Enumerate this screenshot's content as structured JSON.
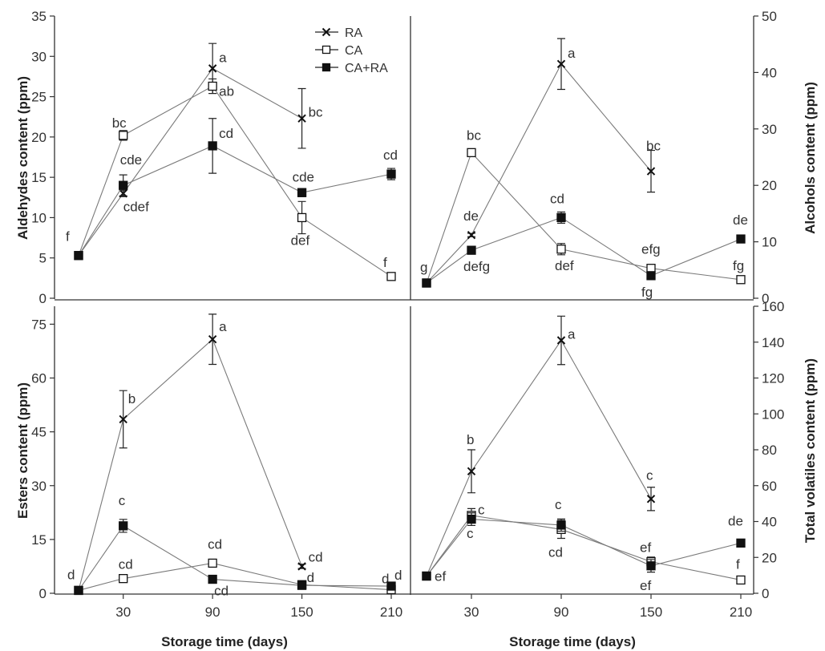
{
  "chart_data": [
    {
      "id": "aldehydes",
      "type": "line",
      "ylabel": "Aldehydes content (ppm)",
      "yaxis_side": "left",
      "ylim": [
        0,
        35
      ],
      "yticks": [
        0,
        5,
        10,
        15,
        20,
        25,
        30,
        35
      ],
      "xlim": [
        0,
        210
      ],
      "xticks": [
        30,
        90,
        150,
        210
      ],
      "legend": "top-center",
      "series": [
        {
          "name": "RA",
          "marker": "x",
          "points": [
            {
              "x": 0,
              "y": 5.3,
              "err": 0,
              "label": ""
            },
            {
              "x": 30,
              "y": 13.0,
              "err": 0.4,
              "label": "cdef"
            },
            {
              "x": 90,
              "y": 28.5,
              "err": 3.1,
              "label": "a"
            },
            {
              "x": 150,
              "y": 22.3,
              "err": 3.7,
              "label": "bc"
            }
          ]
        },
        {
          "name": "CA",
          "marker": "open-square",
          "points": [
            {
              "x": 0,
              "y": 5.3,
              "err": 0,
              "label": ""
            },
            {
              "x": 30,
              "y": 20.2,
              "err": 0.6,
              "label": "bc"
            },
            {
              "x": 90,
              "y": 26.3,
              "err": 0.9,
              "label": "ab"
            },
            {
              "x": 150,
              "y": 10.0,
              "err": 2.0,
              "label": "def"
            },
            {
              "x": 210,
              "y": 2.7,
              "err": 0,
              "label": "f"
            }
          ]
        },
        {
          "name": "CA+RA",
          "marker": "filled-square",
          "points": [
            {
              "x": 0,
              "y": 5.3,
              "err": 0.3,
              "label": "f"
            },
            {
              "x": 30,
              "y": 14.0,
              "err": 1.3,
              "label": "cde"
            },
            {
              "x": 90,
              "y": 18.9,
              "err": 3.4,
              "label": "cd"
            },
            {
              "x": 150,
              "y": 13.1,
              "err": 0.5,
              "label": "cde"
            },
            {
              "x": 210,
              "y": 15.4,
              "err": 0.7,
              "label": "cd"
            }
          ]
        }
      ]
    },
    {
      "id": "alcohols",
      "type": "line",
      "ylabel": "Alcohols content (ppm)",
      "yaxis_side": "right",
      "ylim": [
        0,
        50
      ],
      "yticks": [
        0,
        10,
        20,
        30,
        40,
        50
      ],
      "xlim": [
        0,
        210
      ],
      "xticks": [
        30,
        90,
        150,
        210
      ],
      "series": [
        {
          "name": "RA",
          "marker": "x",
          "points": [
            {
              "x": 0,
              "y": 2.7,
              "err": 0,
              "label": ""
            },
            {
              "x": 30,
              "y": 11.2,
              "err": 0.3,
              "label": "de"
            },
            {
              "x": 90,
              "y": 41.5,
              "err": 4.5,
              "label": "a"
            },
            {
              "x": 150,
              "y": 22.5,
              "err": 3.7,
              "label": "bc"
            }
          ]
        },
        {
          "name": "CA",
          "marker": "open-square",
          "points": [
            {
              "x": 0,
              "y": 2.7,
              "err": 0,
              "label": ""
            },
            {
              "x": 30,
              "y": 25.8,
              "err": 0.4,
              "label": "bc"
            },
            {
              "x": 90,
              "y": 8.7,
              "err": 1.0,
              "label": "def"
            },
            {
              "x": 150,
              "y": 5.3,
              "err": 0.3,
              "label": "efg"
            },
            {
              "x": 210,
              "y": 3.3,
              "err": 0,
              "label": "fg"
            }
          ]
        },
        {
          "name": "CA+RA",
          "marker": "filled-square",
          "points": [
            {
              "x": 0,
              "y": 2.7,
              "err": 0.3,
              "label": "g"
            },
            {
              "x": 30,
              "y": 8.5,
              "err": 0.3,
              "label": "defg"
            },
            {
              "x": 90,
              "y": 14.3,
              "err": 1.0,
              "label": "cd"
            },
            {
              "x": 150,
              "y": 4.0,
              "err": 0.3,
              "label": "fg"
            },
            {
              "x": 210,
              "y": 10.5,
              "err": 0.3,
              "label": "de"
            }
          ]
        }
      ]
    },
    {
      "id": "esters",
      "type": "line",
      "ylabel": "Esters content (ppm)",
      "yaxis_side": "left",
      "ylim": [
        0,
        80
      ],
      "yticks": [
        0,
        15,
        30,
        45,
        60,
        75
      ],
      "xlim": [
        0,
        210
      ],
      "xticks": [
        30,
        90,
        150,
        210
      ],
      "xlabel": "Storage time (days)",
      "series": [
        {
          "name": "RA",
          "marker": "x",
          "points": [
            {
              "x": 0,
              "y": 0.8,
              "err": 0,
              "label": ""
            },
            {
              "x": 30,
              "y": 48.5,
              "err": 8.0,
              "label": "b"
            },
            {
              "x": 90,
              "y": 70.8,
              "err": 7.0,
              "label": "a"
            },
            {
              "x": 150,
              "y": 7.5,
              "err": 0.6,
              "label": "cd"
            }
          ]
        },
        {
          "name": "CA",
          "marker": "open-square",
          "points": [
            {
              "x": 0,
              "y": 0.8,
              "err": 0,
              "label": ""
            },
            {
              "x": 30,
              "y": 4.1,
              "err": 0.5,
              "label": "cd"
            },
            {
              "x": 90,
              "y": 8.4,
              "err": 0.6,
              "label": "cd"
            },
            {
              "x": 150,
              "y": 2.4,
              "err": 0.3,
              "label": ""
            },
            {
              "x": 210,
              "y": 1.0,
              "err": 0,
              "label": "d"
            }
          ]
        },
        {
          "name": "CA+RA",
          "marker": "filled-square",
          "points": [
            {
              "x": 0,
              "y": 0.8,
              "err": 0.3,
              "label": "d"
            },
            {
              "x": 30,
              "y": 18.8,
              "err": 1.8,
              "label": "c"
            },
            {
              "x": 90,
              "y": 3.9,
              "err": 0.6,
              "label": "cd"
            },
            {
              "x": 150,
              "y": 2.2,
              "err": 0.3,
              "label": "d"
            },
            {
              "x": 210,
              "y": 2.0,
              "err": 0.3,
              "label": "d"
            }
          ]
        }
      ]
    },
    {
      "id": "total",
      "type": "line",
      "ylabel": "Total volatiles content (ppm)",
      "yaxis_side": "right",
      "ylim": [
        0,
        160
      ],
      "yticks": [
        0,
        20,
        40,
        60,
        80,
        100,
        120,
        140,
        160
      ],
      "xlim": [
        0,
        210
      ],
      "xticks": [
        30,
        90,
        150,
        210
      ],
      "xlabel": "Storage time (days)",
      "series": [
        {
          "name": "RA",
          "marker": "x",
          "points": [
            {
              "x": 0,
              "y": 9.6,
              "err": 0,
              "label": ""
            },
            {
              "x": 30,
              "y": 68.0,
              "err": 12.0,
              "label": "b"
            },
            {
              "x": 90,
              "y": 141.0,
              "err": 13.5,
              "label": "a"
            },
            {
              "x": 150,
              "y": 52.6,
              "err": 6.5,
              "label": "c"
            }
          ]
        },
        {
          "name": "CA",
          "marker": "open-square",
          "points": [
            {
              "x": 0,
              "y": 9.6,
              "err": 0,
              "label": ""
            },
            {
              "x": 30,
              "y": 43.4,
              "err": 3.8,
              "label": "c"
            },
            {
              "x": 90,
              "y": 35.6,
              "err": 5.0,
              "label": "cd"
            },
            {
              "x": 150,
              "y": 17.6,
              "err": 2.6,
              "label": "ef"
            },
            {
              "x": 210,
              "y": 7.4,
              "err": 0,
              "label": "f"
            }
          ]
        },
        {
          "name": "CA+RA",
          "marker": "filled-square",
          "points": [
            {
              "x": 0,
              "y": 9.6,
              "err": 0.5,
              "label": "ef"
            },
            {
              "x": 30,
              "y": 41.3,
              "err": 3.5,
              "label": "c"
            },
            {
              "x": 90,
              "y": 38.0,
              "err": 3.4,
              "label": "c"
            },
            {
              "x": 150,
              "y": 15.3,
              "err": 3.5,
              "label": "ef"
            },
            {
              "x": 210,
              "y": 28.0,
              "err": 0.8,
              "label": "de"
            }
          ]
        }
      ]
    }
  ]
}
